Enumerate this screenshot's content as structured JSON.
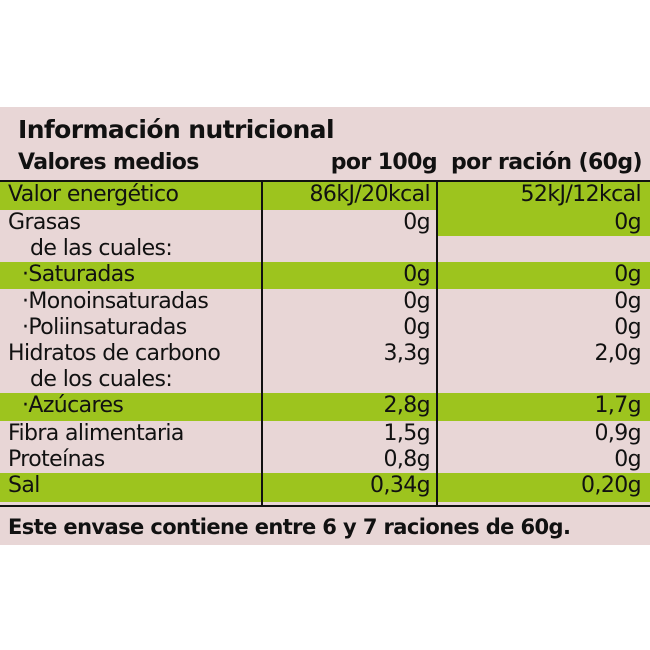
{
  "title": "Información nutricional",
  "header": {
    "label": "Valores medios",
    "per_100g": "por 100g",
    "per_serving": "por ración (60g)"
  },
  "rows": [
    {
      "label": "Valor energético",
      "per_100g": "86kJ/20kcal",
      "per_serving": "52kJ/12kcal"
    },
    {
      "label": "Grasas",
      "per_100g": "0g",
      "per_serving": "0g"
    },
    {
      "label": "de las cuales:"
    },
    {
      "label": "·Saturadas",
      "per_100g": "0g",
      "per_serving": "0g"
    },
    {
      "label": "·Monoinsaturadas",
      "per_100g": "0g",
      "per_serving": "0g"
    },
    {
      "label": "·Poliinsaturadas",
      "per_100g": "0g",
      "per_serving": "0g"
    },
    {
      "label": "Hidratos de carbono",
      "per_100g": "3,3g",
      "per_serving": "2,0g"
    },
    {
      "label": "de los cuales:"
    },
    {
      "label": "·Azúcares",
      "per_100g": "2,8g",
      "per_serving": "1,7g"
    },
    {
      "label": "Fibra alimentaria",
      "per_100g": "1,5g",
      "per_serving": "0,9g"
    },
    {
      "label": "Proteínas",
      "per_100g": "0,8g",
      "per_serving": "0g"
    },
    {
      "label": "Sal",
      "per_100g": "0,34g",
      "per_serving": "0,20g"
    }
  ],
  "footer": "Este envase contiene entre 6 y 7 raciones de 60g."
}
